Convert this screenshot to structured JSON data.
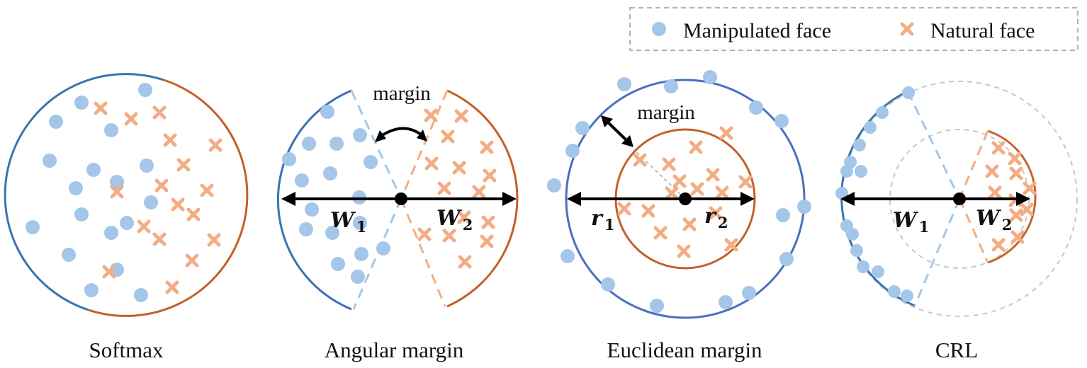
{
  "legend": {
    "manipulated": "Manipulated face",
    "natural": "Natural face"
  },
  "colors": {
    "manipulated": "#a4c6e8",
    "natural": "#f3ad82",
    "blue_arc": "#3a73b0",
    "blue_circle": "#4b6fc0",
    "orange_arc": "#c4602a",
    "gray_dash": "#c8c8c8"
  },
  "panels": {
    "softmax": {
      "caption": "Softmax"
    },
    "angular": {
      "caption": "Angular margin",
      "margin_label": "margin",
      "w1": "W",
      "w1_sub": "1",
      "w2": "W",
      "w2_sub": "2"
    },
    "euclidean": {
      "caption": "Euclidean margin",
      "margin_label": "margin",
      "r1": "r",
      "r1_sub": "1",
      "r2": "r",
      "r2_sub": "2"
    },
    "crl": {
      "caption": "CRL",
      "w1": "W",
      "w1_sub": "1",
      "w2": "W",
      "w2_sub": "2"
    }
  }
}
